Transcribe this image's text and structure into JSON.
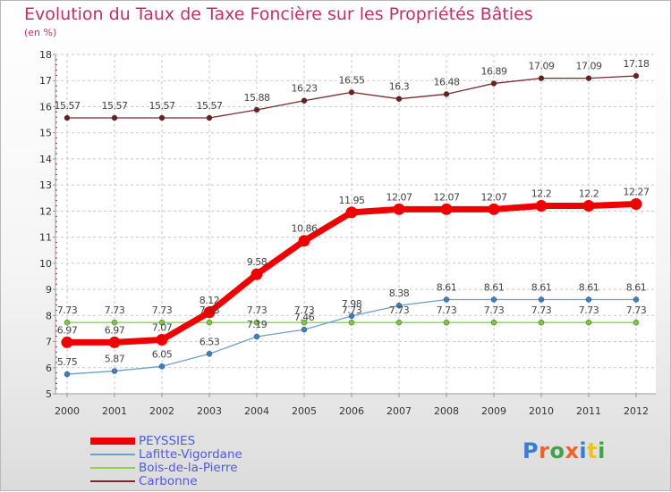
{
  "title": "Evolution du Taux de Taxe Foncière sur les Propriétés Bâties",
  "unit_label": "(en %)",
  "logo": {
    "text": "Proxiti",
    "colors": [
      "#3a7bd5",
      "#e9662c",
      "#3fa34d",
      "#e9662c",
      "#3a7bd5",
      "#e9c32c",
      "#3fa34d"
    ]
  },
  "chart_data": {
    "type": "line",
    "title": "Evolution du Taux de Taxe Foncière sur les Propriétés Bâties",
    "ylabel": "(en %)",
    "xlabel": "",
    "ylim": [
      5,
      18
    ],
    "yticks": [
      5,
      6,
      7,
      8,
      9,
      10,
      11,
      12,
      13,
      14,
      15,
      16,
      17,
      18
    ],
    "grid": "horizontal dashed",
    "legend_placement": "bottom-left",
    "x": [
      "2000",
      "2001",
      "2002",
      "2003",
      "2004",
      "2005",
      "2006",
      "2007",
      "2008",
      "2009",
      "2010",
      "2011",
      "2012"
    ],
    "series": [
      {
        "name": "PEYSSIES",
        "color": "#ee0000",
        "values": [
          6.97,
          6.97,
          7.07,
          8.12,
          9.58,
          10.86,
          11.95,
          12.07,
          12.07,
          12.07,
          12.2,
          12.2,
          12.27
        ],
        "labels": [
          "6.97",
          "6.97",
          "7.07",
          "8.12",
          "9.58",
          "10.86",
          "11.95",
          "12.07",
          "12.07",
          "12.07",
          "12.2",
          "12.2",
          "12.27"
        ]
      },
      {
        "name": "Lafitte-Vigordane",
        "color": "#5b8ec4",
        "values": [
          5.75,
          5.87,
          6.05,
          6.53,
          7.19,
          7.46,
          7.98,
          8.38,
          8.61,
          8.61,
          8.61,
          8.61,
          8.61
        ],
        "labels": [
          "5.75",
          "5.87",
          "6.05",
          "6.53",
          "7.19",
          "7.46",
          "7.98",
          "8.38",
          "8.61",
          "8.61",
          "8.61",
          "8.61",
          "8.61"
        ]
      },
      {
        "name": "Bois-de-la-Pierre",
        "color": "#8fd14f",
        "values": [
          7.73,
          7.73,
          7.73,
          7.73,
          7.73,
          7.73,
          7.73,
          7.73,
          7.73,
          7.73,
          7.73,
          7.73,
          7.73
        ],
        "labels": [
          "7.73",
          "7.73",
          "7.73",
          "7.73",
          "7.73",
          "7.73",
          "7.73",
          "7.73",
          "7.73",
          "7.73",
          "7.73",
          "7.73",
          "7.73"
        ]
      },
      {
        "name": "Carbonne",
        "color": "#7a2a2a",
        "values": [
          15.57,
          15.57,
          15.57,
          15.57,
          15.88,
          16.23,
          16.55,
          16.3,
          16.48,
          16.89,
          17.09,
          17.09,
          17.18
        ],
        "labels": [
          "15.57",
          "15.57",
          "15.57",
          "15.57",
          "15.88",
          "16.23",
          "16.55",
          "16.3",
          "16.48",
          "16.89",
          "17.09",
          "17.09",
          "17.18"
        ]
      }
    ]
  }
}
